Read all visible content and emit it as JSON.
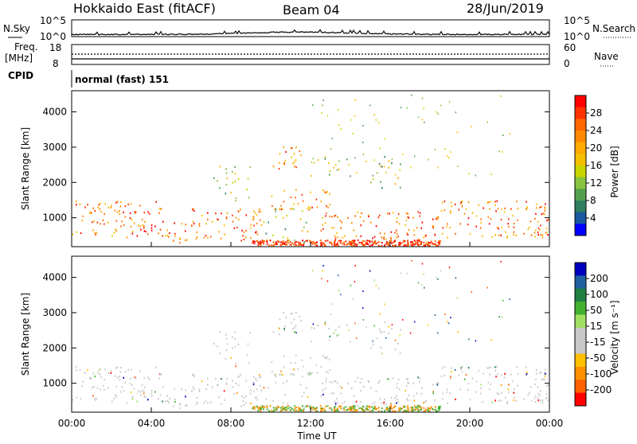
{
  "header": {
    "station": "Hokkaido East (fitACF)",
    "beam": "Beam 04",
    "date": "28/Jun/2019"
  },
  "aux_panels": {
    "nsky_label": "N.Sky",
    "nsky_ticks": [
      "10^5",
      "10^0"
    ],
    "nsearch_label": "N.Search",
    "nsearch_ticks": [
      "10^5",
      "10^0"
    ],
    "freq_label_1": "Freq.",
    "freq_label_2": "[MHz]",
    "freq_ticks": [
      "18",
      "8"
    ],
    "nave_label": "Nave",
    "nave_ticks": [
      "60",
      "0"
    ],
    "cpid_label": "CPID",
    "cpid_value": "normal (fast) 151"
  },
  "chart_data": [
    {
      "type": "heatmap",
      "panel": "power",
      "ylabel": "Slant Range [km]",
      "ylim": [
        180,
        4600
      ],
      "yticks": [
        "1000",
        "2000",
        "3000",
        "4000"
      ],
      "xlabel": "Time UT",
      "xlim": [
        "00:00",
        "24:00"
      ],
      "colorbar_label": "Power [dB]",
      "colorbar_ticks": [
        "28",
        "24",
        "20",
        "16",
        "12",
        "8",
        "4"
      ],
      "colorscale": [
        "#ff0000",
        "#ff3300",
        "#ff6600",
        "#ff8800",
        "#ffaa00",
        "#f5c000",
        "#c9d400",
        "#88c440",
        "#55a050",
        "#2f7f60",
        "#1a5aa0",
        "#0000ff"
      ],
      "echo_regions": [
        {
          "t": [
            0.0,
            4.5
          ],
          "r": [
            450,
            1500
          ],
          "level": "high"
        },
        {
          "t": [
            4.5,
            6.0
          ],
          "r": [
            300,
            950
          ],
          "level": "high"
        },
        {
          "t": [
            6.0,
            9.5
          ],
          "r": [
            350,
            1300
          ],
          "level": "high"
        },
        {
          "t": [
            7.0,
            9.0
          ],
          "r": [
            1500,
            2500
          ],
          "level": "mid"
        },
        {
          "t": [
            9.5,
            12.0
          ],
          "r": [
            300,
            1300
          ],
          "level": "mid"
        },
        {
          "t": [
            10.0,
            13.0
          ],
          "r": [
            1250,
            1850
          ],
          "level": "high"
        },
        {
          "t": [
            10.0,
            11.5
          ],
          "r": [
            2400,
            3100
          ],
          "level": "high"
        },
        {
          "t": [
            12.0,
            14.0
          ],
          "r": [
            2200,
            2800
          ],
          "level": "mid"
        },
        {
          "t": [
            12.5,
            18.5
          ],
          "r": [
            200,
            1200
          ],
          "level": "high"
        },
        {
          "t": [
            15.0,
            16.5
          ],
          "r": [
            1800,
            2800
          ],
          "level": "mid"
        },
        {
          "t": [
            18.5,
            24.0
          ],
          "r": [
            450,
            1500
          ],
          "level": "high"
        }
      ]
    },
    {
      "type": "heatmap",
      "panel": "velocity",
      "ylabel": "Slant Range [km]",
      "ylim": [
        180,
        4600
      ],
      "yticks": [
        "1000",
        "2000",
        "3000",
        "4000"
      ],
      "xlabel": "Time UT",
      "xlim": [
        "00:00",
        "24:00"
      ],
      "xticks": [
        "00:00",
        "04:00",
        "08:00",
        "12:00",
        "16:00",
        "20:00",
        "00:00"
      ],
      "colorbar_label": "Velocity [m s⁻¹]",
      "colorbar_ticks": [
        "200",
        "100",
        "50",
        "15",
        "-15",
        "-50",
        "-100",
        "-200"
      ],
      "colorscale": [
        "#0000c0",
        "#2060a0",
        "#208040",
        "#44b030",
        "#a0e060",
        "#c8c8c8",
        "#c8c8c8",
        "#ffc000",
        "#ff9000",
        "#ff6000",
        "#ff0000"
      ]
    }
  ]
}
